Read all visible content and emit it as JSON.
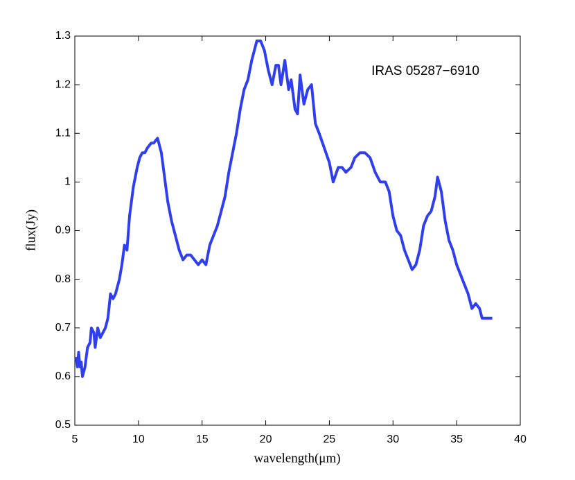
{
  "chart_data": {
    "type": "line",
    "annotation": "IRAS 05287−6910",
    "xlabel": "wavelength(μm)",
    "ylabel": "flux(Jy)",
    "color": "#2f3ff0",
    "xlim": [
      5,
      40
    ],
    "ylim": [
      0.5,
      1.3
    ],
    "xticks": [
      5,
      10,
      15,
      20,
      25,
      30,
      35,
      40
    ],
    "yticks": [
      0.5,
      0.6,
      0.7,
      0.8,
      0.9,
      1,
      1.1,
      1.2,
      1.3
    ],
    "x": [
      5.1,
      5.2,
      5.3,
      5.4,
      5.5,
      5.6,
      5.8,
      6.0,
      6.2,
      6.3,
      6.5,
      6.6,
      6.8,
      7.0,
      7.2,
      7.4,
      7.6,
      7.8,
      8.0,
      8.2,
      8.5,
      8.7,
      8.9,
      9.1,
      9.3,
      9.6,
      9.9,
      10.1,
      10.3,
      10.5,
      10.7,
      11.0,
      11.2,
      11.5,
      11.8,
      12.1,
      12.3,
      12.6,
      12.9,
      13.2,
      13.5,
      13.8,
      14.1,
      14.4,
      14.7,
      15.0,
      15.3,
      15.6,
      15.9,
      16.2,
      16.5,
      16.8,
      17.1,
      17.4,
      17.7,
      18.0,
      18.3,
      18.6,
      18.9,
      19.1,
      19.3,
      19.6,
      19.9,
      20.2,
      20.5,
      20.8,
      21.0,
      21.2,
      21.5,
      21.8,
      22.0,
      22.3,
      22.5,
      22.7,
      23.0,
      23.3,
      23.6,
      23.9,
      24.2,
      24.6,
      25.0,
      25.3,
      25.7,
      26.0,
      26.3,
      26.7,
      27.0,
      27.4,
      27.8,
      28.2,
      28.6,
      29.0,
      29.4,
      29.7,
      30.0,
      30.3,
      30.6,
      30.9,
      31.2,
      31.5,
      31.8,
      32.1,
      32.4,
      32.7,
      33.0,
      33.3,
      33.5,
      33.8,
      34.1,
      34.4,
      34.7,
      35.0,
      35.3,
      35.6,
      35.9,
      36.2,
      36.5,
      36.8,
      37.0,
      37.8
    ],
    "values": [
      0.64,
      0.62,
      0.65,
      0.62,
      0.63,
      0.6,
      0.62,
      0.66,
      0.67,
      0.7,
      0.69,
      0.66,
      0.7,
      0.68,
      0.69,
      0.7,
      0.72,
      0.77,
      0.76,
      0.77,
      0.8,
      0.83,
      0.87,
      0.86,
      0.93,
      0.99,
      1.03,
      1.05,
      1.06,
      1.06,
      1.07,
      1.08,
      1.08,
      1.09,
      1.06,
      1.0,
      0.96,
      0.92,
      0.89,
      0.86,
      0.84,
      0.85,
      0.85,
      0.84,
      0.83,
      0.84,
      0.83,
      0.87,
      0.89,
      0.91,
      0.94,
      0.97,
      1.02,
      1.06,
      1.1,
      1.15,
      1.19,
      1.21,
      1.25,
      1.27,
      1.29,
      1.29,
      1.27,
      1.23,
      1.2,
      1.24,
      1.24,
      1.2,
      1.25,
      1.19,
      1.21,
      1.15,
      1.14,
      1.22,
      1.16,
      1.19,
      1.2,
      1.12,
      1.1,
      1.07,
      1.04,
      1.0,
      1.03,
      1.03,
      1.02,
      1.03,
      1.05,
      1.06,
      1.06,
      1.05,
      1.02,
      1.0,
      1.0,
      0.98,
      0.93,
      0.9,
      0.89,
      0.86,
      0.84,
      0.82,
      0.83,
      0.86,
      0.91,
      0.93,
      0.94,
      0.97,
      1.01,
      0.98,
      0.92,
      0.88,
      0.86,
      0.83,
      0.81,
      0.79,
      0.77,
      0.74,
      0.75,
      0.74,
      0.72,
      0.72
    ]
  }
}
